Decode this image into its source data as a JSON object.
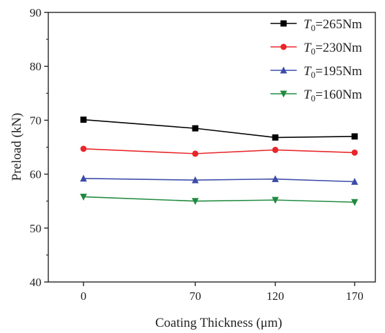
{
  "chart_data": {
    "type": "line",
    "xlabel": "Coating Thickness (μm)",
    "ylabel": "Preload (kN)",
    "x": [
      0,
      70,
      120,
      170
    ],
    "x_tick_labels": [
      "0",
      "70",
      "120",
      "170"
    ],
    "y_ticks": [
      40,
      50,
      60,
      70,
      80,
      90
    ],
    "ylim": [
      40,
      90
    ],
    "legend_position": "top-right",
    "grid": false,
    "series": [
      {
        "name": "T0=265Nm",
        "symbol": "T",
        "subscript": "0",
        "value_text": "=265Nm",
        "color": "#000000",
        "marker": "square",
        "values": [
          70.1,
          68.5,
          66.8,
          67.0
        ]
      },
      {
        "name": "T0=230Nm",
        "symbol": "T",
        "subscript": "0",
        "value_text": "=230Nm",
        "color": "#e8262a",
        "marker": "circle",
        "values": [
          64.7,
          63.8,
          64.5,
          64.0
        ]
      },
      {
        "name": "T0=195Nm",
        "symbol": "T",
        "subscript": "0",
        "value_text": "=195Nm",
        "color": "#3b4ba8",
        "marker": "triangle-up",
        "values": [
          59.2,
          58.9,
          59.1,
          58.6
        ]
      },
      {
        "name": "T0=160Nm",
        "symbol": "T",
        "subscript": "0",
        "value_text": "=160Nm",
        "color": "#1f8a3e",
        "marker": "triangle-down",
        "values": [
          55.8,
          55.0,
          55.2,
          54.8
        ]
      }
    ]
  }
}
